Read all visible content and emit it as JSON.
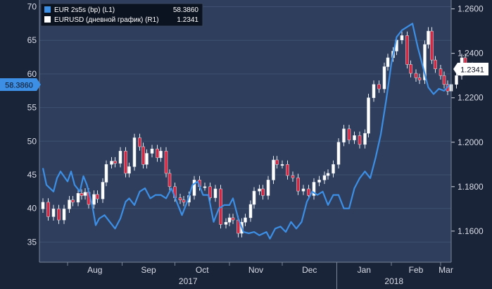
{
  "chart_data": {
    "type": "line",
    "x_ticks": [
      "Aug",
      "Sep",
      "Oct",
      "Nov",
      "Dec",
      "Jan",
      "Feb",
      "Mar"
    ],
    "year_labels": [
      "2017",
      "2018"
    ],
    "left_axis": {
      "ticks": [
        "35",
        "40",
        "45",
        "50",
        "55",
        "60",
        "65",
        "70"
      ],
      "range": [
        32,
        71
      ]
    },
    "right_axis": {
      "ticks": [
        "1.1600",
        "1.1800",
        "1.2000",
        "1.2200",
        "1.2400",
        "1.2600"
      ],
      "range": [
        1.146,
        1.264
      ]
    },
    "legend": [
      {
        "label": "EUR 2s5s (bp)  (L1)",
        "value": "58.3860",
        "color": "#3d8fe6"
      },
      {
        "label": "EURUSD (дневной график)  (R1)",
        "value": "1.2341",
        "color": "#ffffff"
      }
    ],
    "last_value_tags": {
      "left": "58.3860",
      "right": "1.2341"
    },
    "series": [
      {
        "name": "EUR 2s5s (bp)",
        "axis": "left",
        "color": "#3d8fe6",
        "points": [
          [
            "2017-07-18",
            46.0
          ],
          [
            "2017-07-20",
            43.5
          ],
          [
            "2017-07-24",
            42.5
          ],
          [
            "2017-07-26",
            44.5
          ],
          [
            "2017-07-28",
            45.5
          ],
          [
            "2017-08-01",
            44.0
          ],
          [
            "2017-08-03",
            45.5
          ],
          [
            "2017-08-05",
            43.5
          ],
          [
            "2017-08-08",
            42.5
          ],
          [
            "2017-08-10",
            44.8
          ],
          [
            "2017-08-12",
            43.5
          ],
          [
            "2017-08-15",
            40.5
          ],
          [
            "2017-08-17",
            37.5
          ],
          [
            "2017-08-19",
            38.5
          ],
          [
            "2017-08-22",
            39.0
          ],
          [
            "2017-08-25",
            38.0
          ],
          [
            "2017-08-28",
            37.0
          ],
          [
            "2017-08-31",
            38.5
          ],
          [
            "2017-09-03",
            41.0
          ],
          [
            "2017-09-05",
            41.5
          ],
          [
            "2017-09-08",
            40.5
          ],
          [
            "2017-09-11",
            42.5
          ],
          [
            "2017-09-14",
            43.0
          ],
          [
            "2017-09-17",
            41.5
          ],
          [
            "2017-09-20",
            42.0
          ],
          [
            "2017-09-23",
            42.0
          ],
          [
            "2017-09-26",
            41.5
          ],
          [
            "2017-09-29",
            43.0
          ],
          [
            "2017-10-02",
            41.0
          ],
          [
            "2017-10-05",
            39.0
          ],
          [
            "2017-10-08",
            41.0
          ],
          [
            "2017-10-11",
            43.5
          ],
          [
            "2017-10-14",
            44.0
          ],
          [
            "2017-10-17",
            42.0
          ],
          [
            "2017-10-20",
            42.0
          ],
          [
            "2017-10-23",
            38.0
          ],
          [
            "2017-10-26",
            40.0
          ],
          [
            "2017-10-29",
            40.5
          ],
          [
            "2017-11-01",
            40.5
          ],
          [
            "2017-11-03",
            41.5
          ],
          [
            "2017-11-06",
            38.5
          ],
          [
            "2017-11-09",
            36.5
          ],
          [
            "2017-11-12",
            36.3
          ],
          [
            "2017-11-15",
            36.5
          ],
          [
            "2017-11-18",
            36.0
          ],
          [
            "2017-11-22",
            36.5
          ],
          [
            "2017-11-24",
            35.5
          ],
          [
            "2017-11-27",
            37.0
          ],
          [
            "2017-11-30",
            37.3
          ],
          [
            "2017-12-03",
            36.5
          ],
          [
            "2017-12-06",
            38.0
          ],
          [
            "2017-12-09",
            37.0
          ],
          [
            "2017-12-12",
            38.0
          ],
          [
            "2017-12-15",
            41.0
          ],
          [
            "2017-12-18",
            42.5
          ],
          [
            "2017-12-21",
            42.0
          ],
          [
            "2017-12-24",
            42.5
          ],
          [
            "2017-12-27",
            40.5
          ],
          [
            "2017-12-30",
            42.0
          ],
          [
            "2018-01-02",
            42.0
          ],
          [
            "2018-01-05",
            40.0
          ],
          [
            "2018-01-08",
            40.0
          ],
          [
            "2018-01-11",
            43.0
          ],
          [
            "2018-01-14",
            44.5
          ],
          [
            "2018-01-17",
            45.5
          ],
          [
            "2018-01-20",
            44.5
          ],
          [
            "2018-01-23",
            47.5
          ],
          [
            "2018-01-26",
            51.0
          ],
          [
            "2018-01-29",
            56.0
          ],
          [
            "2018-02-01",
            61.5
          ],
          [
            "2018-02-04",
            65.5
          ],
          [
            "2018-02-07",
            66.5
          ],
          [
            "2018-02-10",
            67.0
          ],
          [
            "2018-02-13",
            67.5
          ],
          [
            "2018-02-16",
            64.0
          ],
          [
            "2018-02-19",
            61.0
          ],
          [
            "2018-02-22",
            58.0
          ],
          [
            "2018-02-25",
            57.0
          ],
          [
            "2018-02-28",
            57.8
          ],
          [
            "2018-03-03",
            57.5
          ],
          [
            "2018-03-06",
            58.4
          ]
        ]
      },
      {
        "name": "EURUSD (дневной график)",
        "axis": "right",
        "type": "candlestick",
        "up_color": "#ffffff",
        "down_color": "#d9253f",
        "closes": [
          [
            "2017-07-18",
            1.173
          ],
          [
            "2017-07-21",
            1.1665
          ],
          [
            "2017-07-24",
            1.17
          ],
          [
            "2017-07-27",
            1.165
          ],
          [
            "2017-07-30",
            1.17
          ],
          [
            "2017-08-02",
            1.174
          ],
          [
            "2017-08-04",
            1.173
          ],
          [
            "2017-08-07",
            1.177
          ],
          [
            "2017-08-09",
            1.176
          ],
          [
            "2017-08-11",
            1.1775
          ],
          [
            "2017-08-13",
            1.172
          ],
          [
            "2017-08-16",
            1.1765
          ],
          [
            "2017-08-18",
            1.1745
          ],
          [
            "2017-08-21",
            1.182
          ],
          [
            "2017-08-23",
            1.19
          ],
          [
            "2017-08-26",
            1.1915
          ],
          [
            "2017-08-28",
            1.1905
          ],
          [
            "2017-08-31",
            1.196
          ],
          [
            "2017-09-03",
            1.186
          ],
          [
            "2017-09-05",
            1.189
          ],
          [
            "2017-09-08",
            1.202
          ],
          [
            "2017-09-11",
            1.198
          ],
          [
            "2017-09-13",
            1.19
          ],
          [
            "2017-09-15",
            1.195
          ],
          [
            "2017-09-18",
            1.197
          ],
          [
            "2017-09-21",
            1.193
          ],
          [
            "2017-09-23",
            1.196
          ],
          [
            "2017-09-26",
            1.186
          ],
          [
            "2017-09-28",
            1.18
          ],
          [
            "2017-10-01",
            1.175
          ],
          [
            "2017-10-04",
            1.174
          ],
          [
            "2017-10-06",
            1.173
          ],
          [
            "2017-10-09",
            1.176
          ],
          [
            "2017-10-12",
            1.183
          ],
          [
            "2017-10-15",
            1.18
          ],
          [
            "2017-10-18",
            1.18
          ],
          [
            "2017-10-21",
            1.175
          ],
          [
            "2017-10-24",
            1.179
          ],
          [
            "2017-10-27",
            1.163
          ],
          [
            "2017-10-30",
            1.164
          ],
          [
            "2017-11-01",
            1.166
          ],
          [
            "2017-11-03",
            1.165
          ],
          [
            "2017-11-06",
            1.159
          ],
          [
            "2017-11-08",
            1.164
          ],
          [
            "2017-11-10",
            1.166
          ],
          [
            "2017-11-13",
            1.172
          ],
          [
            "2017-11-15",
            1.178
          ],
          [
            "2017-11-18",
            1.179
          ],
          [
            "2017-11-20",
            1.176
          ],
          [
            "2017-11-23",
            1.183
          ],
          [
            "2017-11-26",
            1.192
          ],
          [
            "2017-11-28",
            1.19
          ],
          [
            "2017-12-01",
            1.19
          ],
          [
            "2017-12-04",
            1.185
          ],
          [
            "2017-12-07",
            1.184
          ],
          [
            "2017-12-10",
            1.178
          ],
          [
            "2017-12-13",
            1.179
          ],
          [
            "2017-12-16",
            1.176
          ],
          [
            "2017-12-19",
            1.182
          ],
          [
            "2017-12-22",
            1.183
          ],
          [
            "2017-12-25",
            1.185
          ],
          [
            "2017-12-27",
            1.186
          ],
          [
            "2017-12-30",
            1.19
          ],
          [
            "2018-01-02",
            1.2
          ],
          [
            "2018-01-05",
            1.206
          ],
          [
            "2018-01-08",
            1.201
          ],
          [
            "2018-01-11",
            1.203
          ],
          [
            "2018-01-14",
            1.199
          ],
          [
            "2018-01-17",
            1.204
          ],
          [
            "2018-01-19",
            1.22
          ],
          [
            "2018-01-22",
            1.226
          ],
          [
            "2018-01-25",
            1.224
          ],
          [
            "2018-01-28",
            1.234
          ],
          [
            "2018-01-30",
            1.238
          ],
          [
            "2018-02-02",
            1.241
          ],
          [
            "2018-02-04",
            1.246
          ],
          [
            "2018-02-07",
            1.248
          ],
          [
            "2018-02-10",
            1.235
          ],
          [
            "2018-02-12",
            1.231
          ],
          [
            "2018-02-15",
            1.229
          ],
          [
            "2018-02-17",
            1.228
          ],
          [
            "2018-02-20",
            1.244
          ],
          [
            "2018-02-22",
            1.25
          ],
          [
            "2018-02-24",
            1.237
          ],
          [
            "2018-02-26",
            1.233
          ],
          [
            "2018-03-01",
            1.23
          ],
          [
            "2018-03-03",
            1.226
          ],
          [
            "2018-03-05",
            1.223
          ],
          [
            "2018-03-07",
            1.226
          ],
          [
            "2018-03-10",
            1.23
          ],
          [
            "2018-03-13",
            1.238
          ],
          [
            "2018-03-15",
            1.234
          ],
          [
            "2018-03-17",
            1.232
          ],
          [
            "2018-03-19",
            1.2341
          ]
        ]
      }
    ]
  }
}
